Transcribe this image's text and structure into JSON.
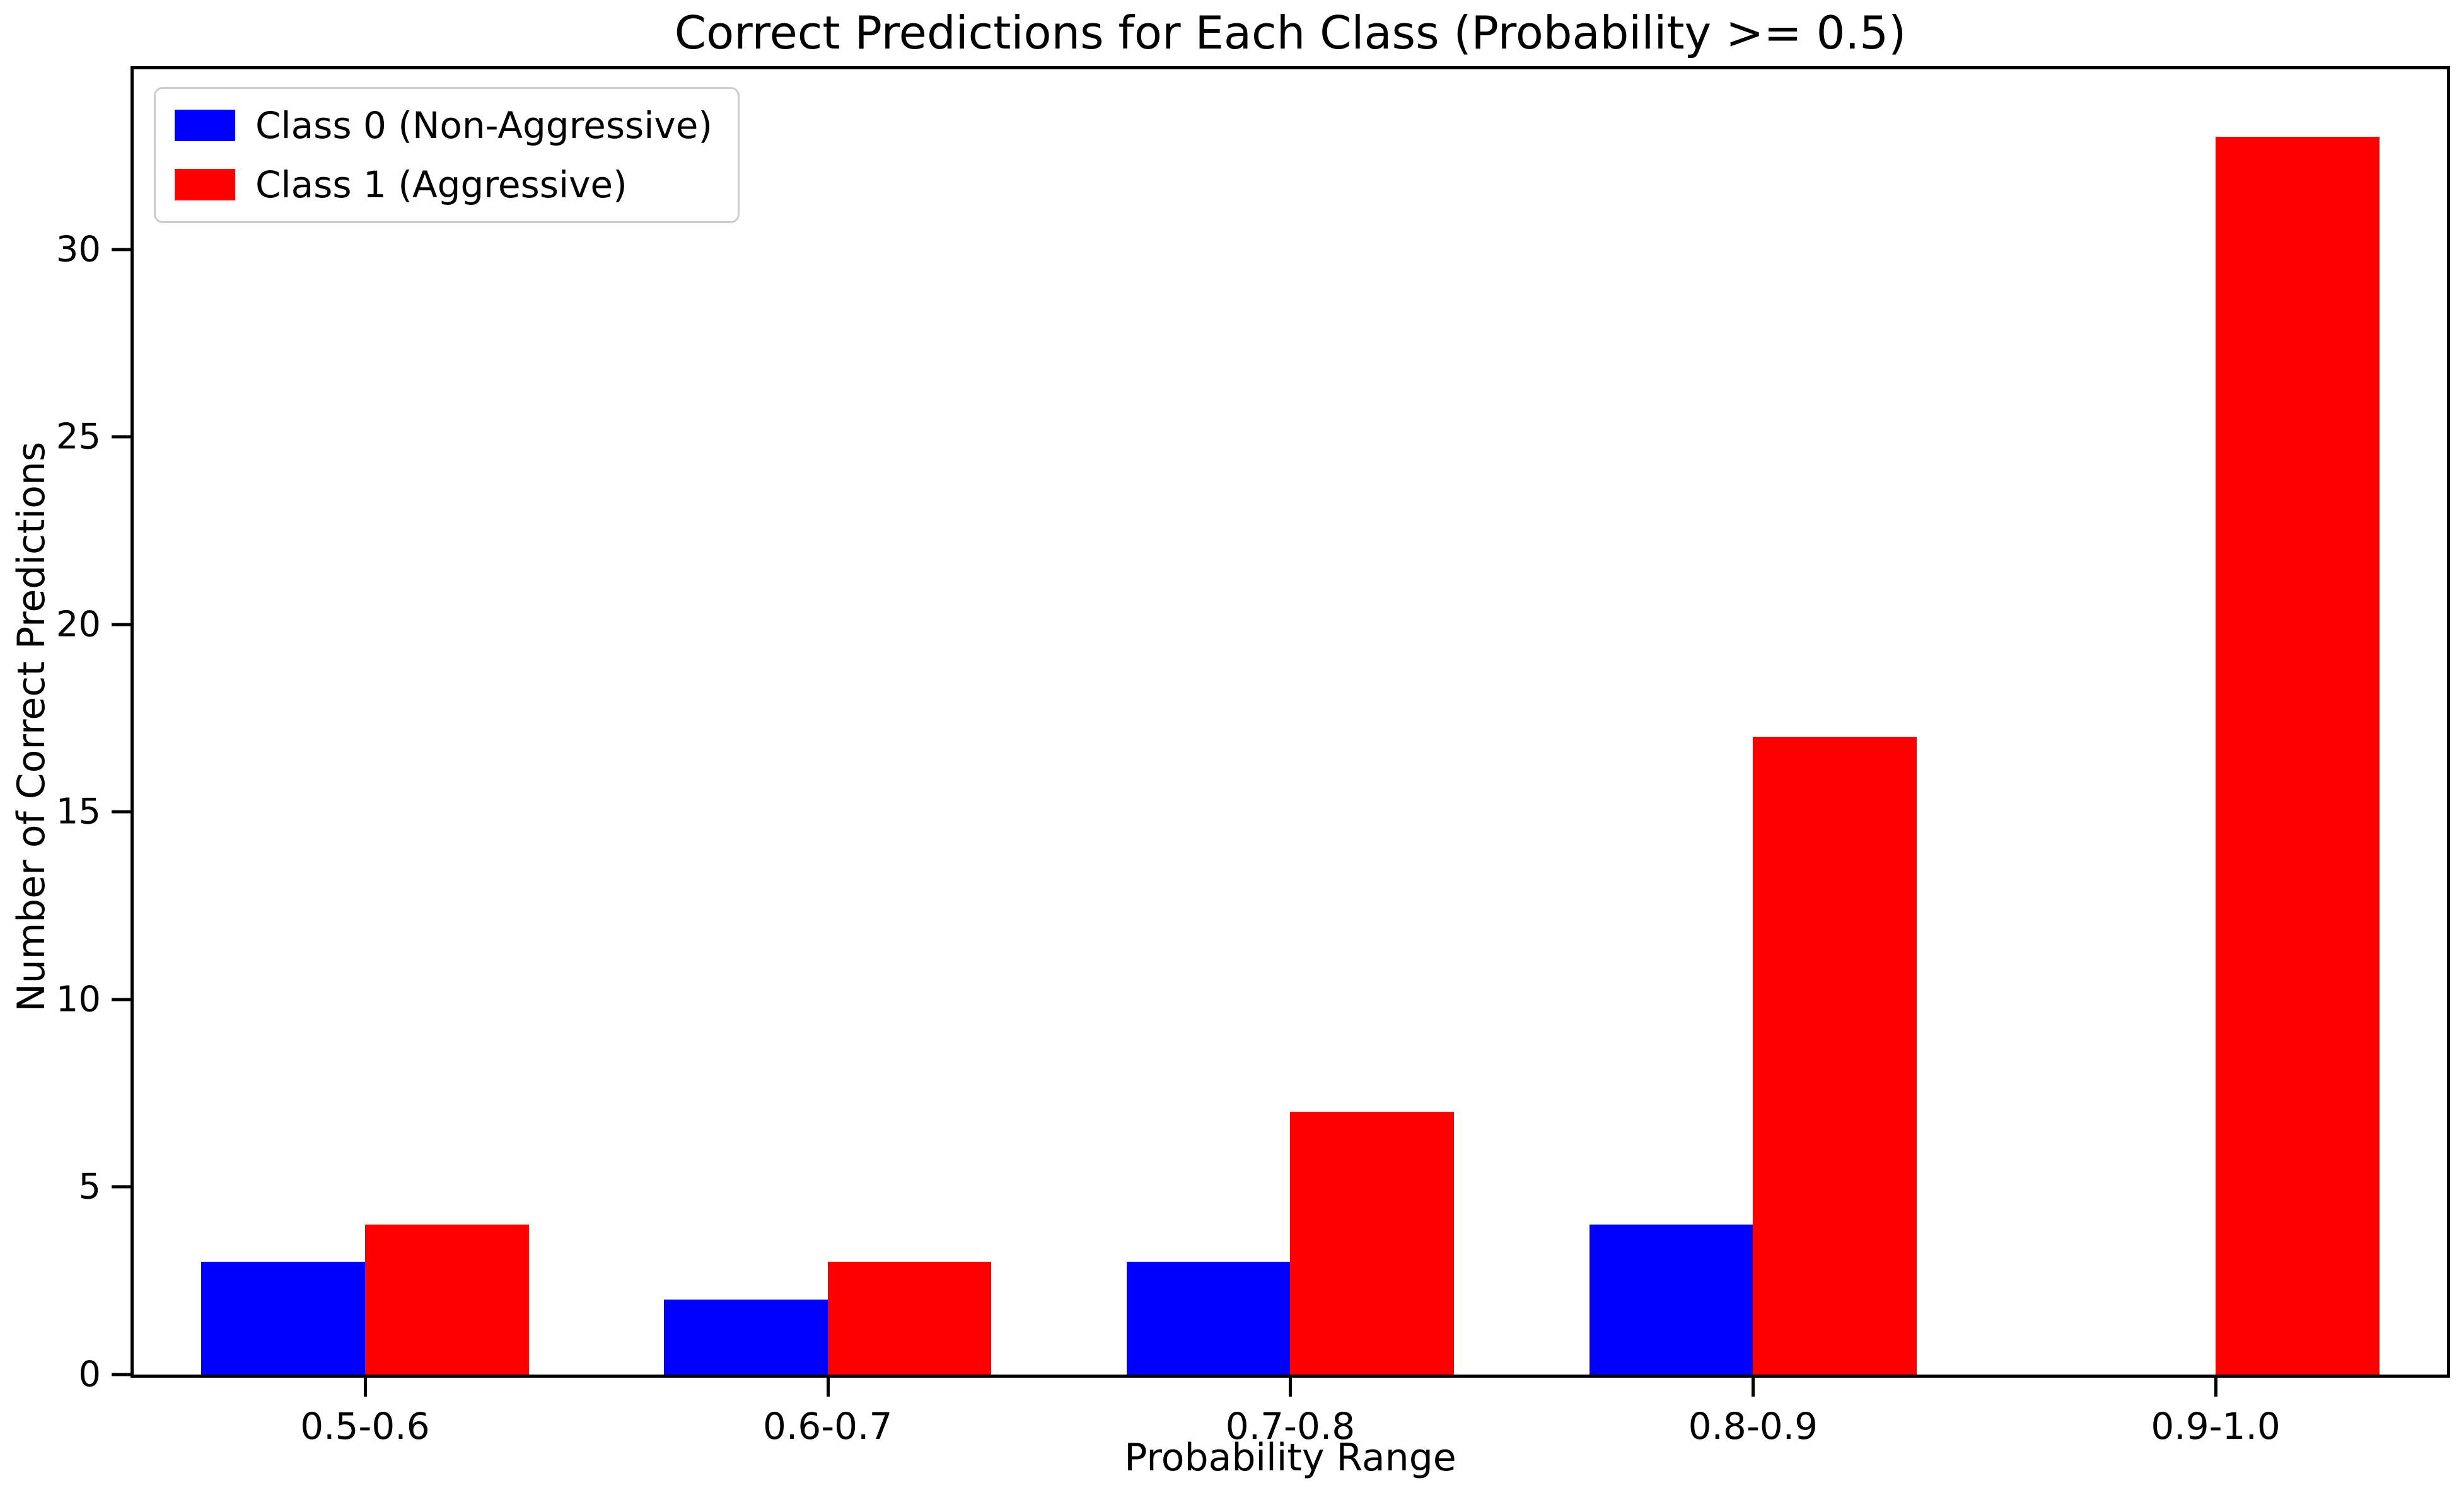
{
  "title": "Correct Predictions for Each Class (Probability >= 0.5)",
  "xlabel": "Probability Range",
  "ylabel": "Number of Correct Predictions",
  "legend": {
    "entries": [
      {
        "label": "Class 0 (Non-Aggressive)",
        "color": "#0000ff"
      },
      {
        "label": "Class 1 (Aggressive)",
        "color": "#ff0000"
      }
    ],
    "position": "upper-left"
  },
  "chart_data": {
    "type": "bar",
    "title": "Correct Predictions for Each Class (Probability >= 0.5)",
    "xlabel": "Probability Range",
    "ylabel": "Number of Correct Predictions",
    "categories": [
      "0.5-0.6",
      "0.6-0.7",
      "0.7-0.8",
      "0.8-0.9",
      "0.9-1.0"
    ],
    "series": [
      {
        "name": "Class 0 (Non-Aggressive)",
        "color": "#0000ff",
        "values": [
          3,
          2,
          3,
          4,
          0
        ]
      },
      {
        "name": "Class 1 (Aggressive)",
        "color": "#ff0000",
        "values": [
          4,
          3,
          7,
          17,
          33
        ]
      }
    ],
    "yticks": [
      0,
      5,
      10,
      15,
      20,
      25,
      30
    ],
    "ylim": [
      0,
      34.8
    ],
    "grid": false,
    "legend_position": "upper left",
    "bar_width_fraction": 0.354,
    "colors": {
      "class0": "#0000ff",
      "class1": "#ff0000",
      "text": "#000000",
      "spine": "#000000",
      "legend_border": "#cccccc",
      "background": "#ffffff"
    }
  }
}
